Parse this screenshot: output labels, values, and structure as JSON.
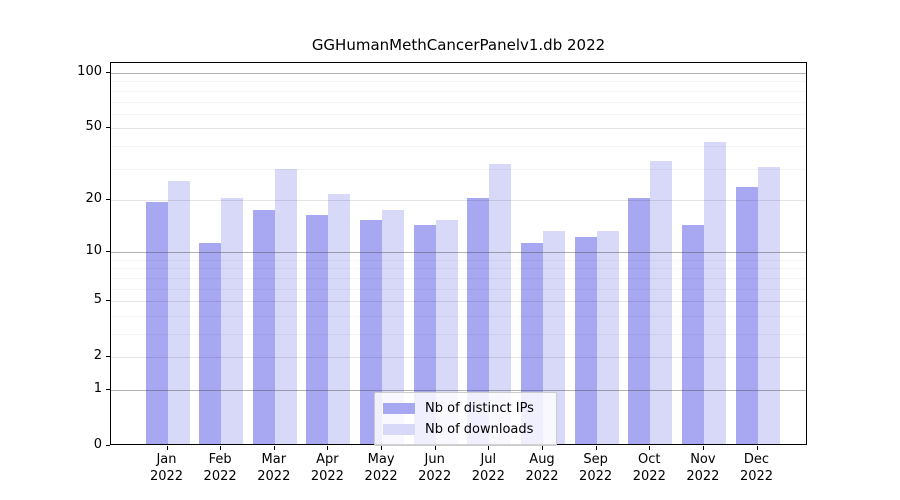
{
  "title": "GGHumanMethCancerPanelv1.db 2022",
  "chart_data": {
    "type": "bar",
    "title": "GGHumanMethCancerPanelv1.db 2022",
    "categories": [
      "Jan",
      "Feb",
      "Mar",
      "Apr",
      "May",
      "Jun",
      "Jul",
      "Aug",
      "Sep",
      "Oct",
      "Nov",
      "Dec"
    ],
    "x_year": "2022",
    "series": [
      {
        "name": "Nb of distinct IPs",
        "color": "#a8a8f2",
        "values": [
          19,
          11,
          17,
          16,
          15,
          14,
          20,
          11,
          12,
          20,
          14,
          23
        ]
      },
      {
        "name": "Nb of downloads",
        "color": "#d8d8f9",
        "values": [
          25,
          20,
          29,
          21,
          17,
          15,
          31,
          13,
          13,
          32,
          41,
          30
        ]
      }
    ],
    "xlabel": "",
    "ylabel": "",
    "yscale": "log1p",
    "ylim": [
      0,
      113
    ],
    "yticks": [
      0,
      1,
      2,
      5,
      10,
      20,
      50,
      100
    ],
    "yticks_minor": [
      3,
      4,
      6,
      7,
      8,
      9,
      30,
      40,
      60,
      70,
      80,
      90
    ],
    "grid": true,
    "legend_position": "lower center inside axes"
  }
}
